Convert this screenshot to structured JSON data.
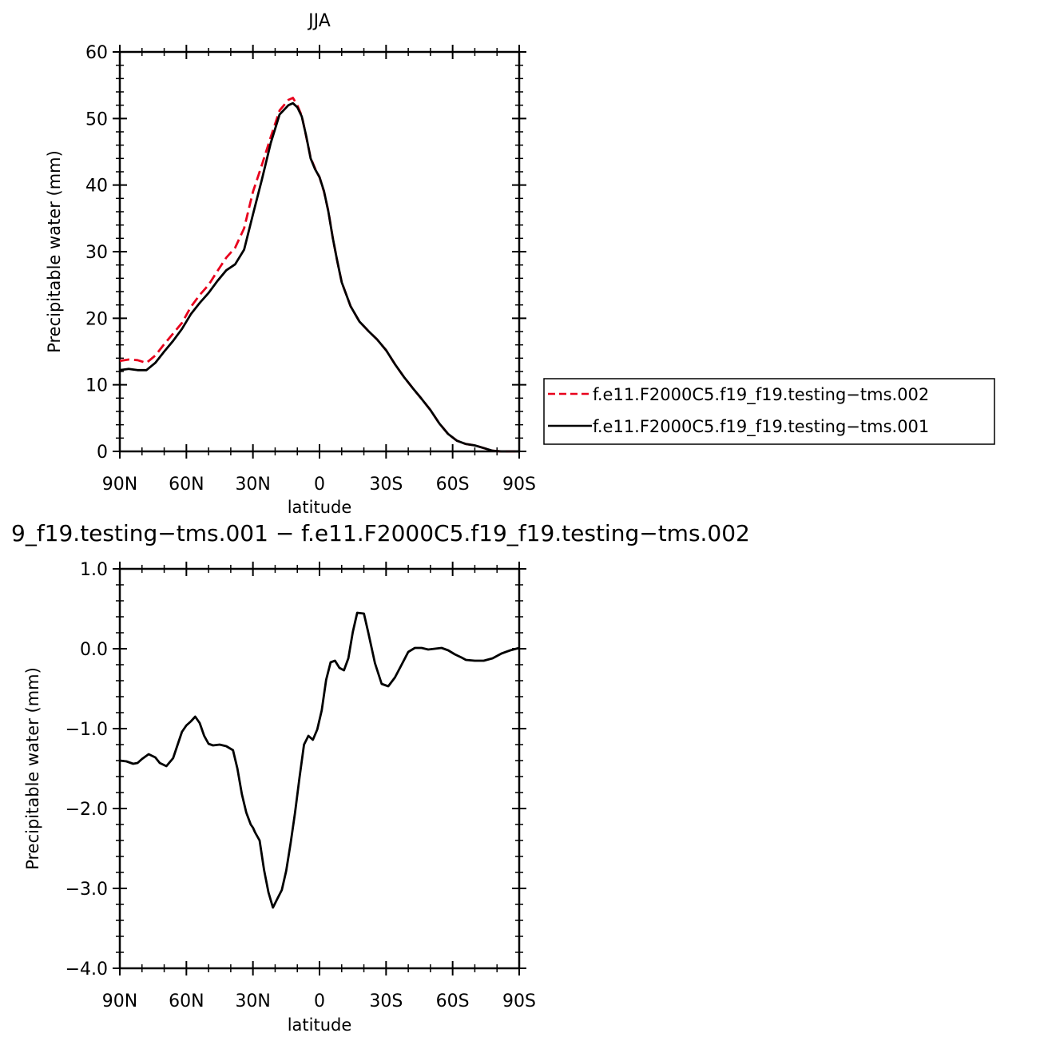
{
  "chart_data": [
    {
      "type": "line",
      "title": "JJA",
      "xlabel": "latitude",
      "ylabel": "Precipitable water (mm)",
      "xlim": [
        90,
        -90
      ],
      "ylim": [
        0,
        60
      ],
      "x_ticks": [
        {
          "value": 90,
          "label": "90N"
        },
        {
          "value": 60,
          "label": "60N"
        },
        {
          "value": 30,
          "label": "30N"
        },
        {
          "value": 0,
          "label": "0"
        },
        {
          "value": -30,
          "label": "30S"
        },
        {
          "value": -60,
          "label": "60S"
        },
        {
          "value": -90,
          "label": "90S"
        }
      ],
      "y_ticks": [
        {
          "value": 0,
          "label": "0"
        },
        {
          "value": 10,
          "label": "10"
        },
        {
          "value": 20,
          "label": "20"
        },
        {
          "value": 30,
          "label": "30"
        },
        {
          "value": 40,
          "label": "40"
        },
        {
          "value": 50,
          "label": "50"
        },
        {
          "value": 60,
          "label": "60"
        }
      ],
      "legend_position": "right",
      "series": [
        {
          "name": "f.e11.F2000C5.f19_f19.testing−tms.002",
          "color": "#e8001c",
          "style": "dashed",
          "x": [
            90,
            86,
            82,
            78,
            74,
            70,
            66,
            62,
            58,
            54,
            50,
            46,
            42,
            38,
            34,
            30,
            26,
            22,
            18,
            14,
            12,
            10,
            8,
            6,
            4,
            2,
            0,
            -2,
            -4,
            -6,
            -8,
            -10,
            -14,
            -18,
            -22,
            -26,
            -30,
            -34,
            -38,
            -42,
            -46,
            -50,
            -54,
            -58,
            -62,
            -66,
            -70,
            -74,
            -78,
            -82,
            -86,
            -90
          ],
          "y": [
            13.6,
            13.8,
            13.7,
            13.3,
            14.4,
            16.1,
            17.7,
            19.3,
            21.7,
            23.5,
            25.0,
            27.1,
            29.1,
            30.6,
            33.5,
            39.0,
            43.0,
            47.2,
            51.2,
            52.8,
            53.1,
            52.0,
            50.4,
            47.3,
            44.1,
            42.5,
            41.2,
            39.0,
            36.1,
            32.0,
            28.6,
            25.4,
            21.8,
            19.5,
            18.1,
            16.8,
            15.2,
            13.1,
            11.2,
            9.5,
            7.9,
            6.2,
            4.2,
            2.6,
            1.6,
            1.1,
            0.9,
            0.5,
            0.1,
            0.0,
            0.0,
            0.0
          ]
        },
        {
          "name": "f.e11.F2000C5.f19_f19.testing−tms.001",
          "color": "#000000",
          "style": "solid",
          "x": [
            90,
            86,
            82,
            78,
            74,
            70,
            66,
            62,
            58,
            54,
            50,
            46,
            42,
            38,
            34,
            30,
            26,
            22,
            18,
            14,
            12,
            10,
            8,
            6,
            4,
            2,
            0,
            -2,
            -4,
            -6,
            -8,
            -10,
            -14,
            -18,
            -22,
            -26,
            -30,
            -34,
            -38,
            -42,
            -46,
            -50,
            -54,
            -58,
            -62,
            -66,
            -70,
            -74,
            -78,
            -82,
            -86,
            -90
          ],
          "y": [
            12.2,
            12.4,
            12.2,
            12.2,
            13.3,
            15.0,
            16.6,
            18.4,
            20.6,
            22.3,
            23.8,
            25.6,
            27.2,
            28.1,
            30.3,
            35.6,
            40.8,
            46.3,
            50.6,
            52.0,
            52.3,
            51.7,
            50.3,
            47.4,
            44.0,
            42.4,
            41.2,
            39.1,
            36.0,
            32.0,
            28.6,
            25.4,
            21.8,
            19.5,
            18.1,
            16.8,
            15.2,
            13.1,
            11.2,
            9.5,
            7.9,
            6.2,
            4.2,
            2.6,
            1.6,
            1.1,
            0.9,
            0.5,
            0.1,
            0.0,
            0.0,
            0.0
          ]
        }
      ]
    },
    {
      "type": "line",
      "title": "9_f19.testing−tms.001 − f.e11.F2000C5.f19_f19.testing−tms.002",
      "xlabel": "latitude",
      "ylabel": "Precipitable water (mm)",
      "xlim": [
        90,
        -90
      ],
      "ylim": [
        -4.0,
        1.0
      ],
      "x_ticks": [
        {
          "value": 90,
          "label": "90N"
        },
        {
          "value": 60,
          "label": "60N"
        },
        {
          "value": 30,
          "label": "30N"
        },
        {
          "value": 0,
          "label": "0"
        },
        {
          "value": -30,
          "label": "30S"
        },
        {
          "value": -60,
          "label": "60S"
        },
        {
          "value": -90,
          "label": "90S"
        }
      ],
      "y_ticks": [
        {
          "value": 1.0,
          "label": "1.0"
        },
        {
          "value": 0.0,
          "label": "0.0"
        },
        {
          "value": -1.0,
          "label": "−1.0"
        },
        {
          "value": -2.0,
          "label": "−2.0"
        },
        {
          "value": -3.0,
          "label": "−3.0"
        },
        {
          "value": -4.0,
          "label": "−4.0"
        }
      ],
      "series": [
        {
          "color": "#000000",
          "style": "solid",
          "x": [
            90,
            87,
            84,
            82,
            80,
            77,
            74,
            72,
            69,
            66,
            62,
            60,
            58,
            56,
            54,
            52,
            50,
            48,
            45,
            42,
            39,
            37,
            35,
            33,
            31,
            30,
            29,
            27,
            25,
            23,
            21,
            19,
            17,
            15,
            13,
            11,
            9,
            7,
            5,
            3,
            1,
            -1,
            -3,
            -5,
            -7,
            -9,
            -11,
            -13,
            -15,
            -17,
            -20,
            -22,
            -25,
            -28,
            -31,
            -34,
            -37,
            -40,
            -43,
            -46,
            -49,
            -52,
            -55,
            -58,
            -61,
            -64,
            -66,
            -70,
            -74,
            -78,
            -82,
            -86,
            -90
          ],
          "y": [
            -1.4,
            -1.41,
            -1.44,
            -1.43,
            -1.38,
            -1.32,
            -1.36,
            -1.43,
            -1.47,
            -1.37,
            -1.04,
            -0.96,
            -0.91,
            -0.85,
            -0.93,
            -1.09,
            -1.19,
            -1.21,
            -1.2,
            -1.22,
            -1.27,
            -1.5,
            -1.82,
            -2.05,
            -2.2,
            -2.24,
            -2.3,
            -2.4,
            -2.77,
            -3.05,
            -3.24,
            -3.13,
            -3.02,
            -2.78,
            -2.43,
            -2.05,
            -1.61,
            -1.2,
            -1.09,
            -1.14,
            -1.01,
            -0.77,
            -0.39,
            -0.17,
            -0.15,
            -0.24,
            -0.27,
            -0.12,
            0.21,
            0.45,
            0.44,
            0.2,
            -0.18,
            -0.44,
            -0.47,
            -0.36,
            -0.2,
            -0.04,
            0.01,
            0.01,
            -0.01,
            0.0,
            0.01,
            -0.02,
            -0.07,
            -0.11,
            -0.14,
            -0.15,
            -0.15,
            -0.12,
            -0.06,
            -0.02,
            0.01
          ]
        }
      ]
    }
  ]
}
